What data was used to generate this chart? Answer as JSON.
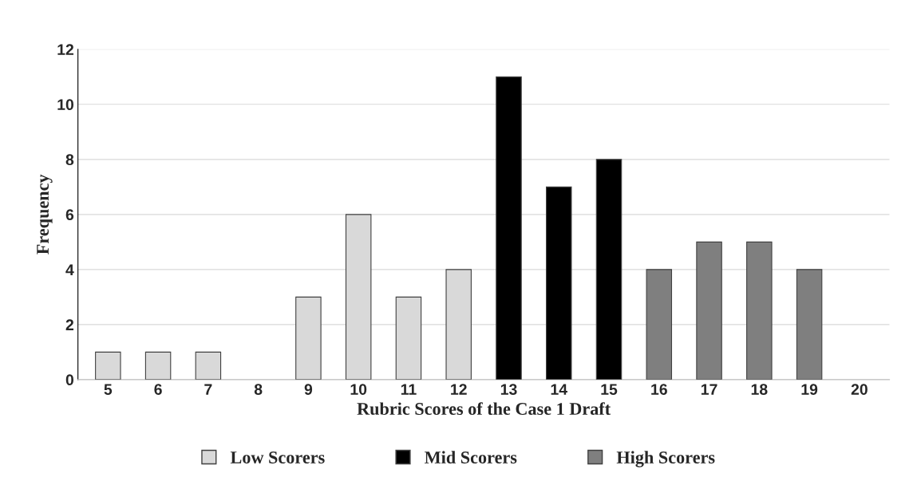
{
  "chart_data": {
    "type": "bar",
    "stacked": true,
    "xlabel": "Rubric Scores of the Case 1 Draft",
    "ylabel": "Frequency",
    "categories": [
      "5",
      "6",
      "7",
      "8",
      "9",
      "10",
      "11",
      "12",
      "13",
      "14",
      "15",
      "16",
      "17",
      "18",
      "19",
      "20"
    ],
    "series": [
      {
        "name": "Low Scorers",
        "color": "#d9d9d9",
        "values": [
          1,
          1,
          1,
          null,
          3,
          6,
          3,
          4,
          null,
          null,
          null,
          null,
          null,
          null,
          null,
          null
        ]
      },
      {
        "name": "Mid Scorers",
        "color": "#000000",
        "values": [
          null,
          null,
          null,
          null,
          null,
          null,
          null,
          null,
          11,
          7,
          8,
          null,
          null,
          null,
          null,
          null
        ]
      },
      {
        "name": "High Scorers",
        "color": "#7f7f7f",
        "values": [
          null,
          null,
          null,
          null,
          null,
          null,
          null,
          null,
          null,
          null,
          null,
          4,
          5,
          5,
          4,
          null
        ]
      }
    ],
    "ylim": [
      0,
      12
    ],
    "yticks": [
      0,
      2,
      4,
      6,
      8,
      10,
      12
    ],
    "grid": "y",
    "legend": "bottom"
  }
}
